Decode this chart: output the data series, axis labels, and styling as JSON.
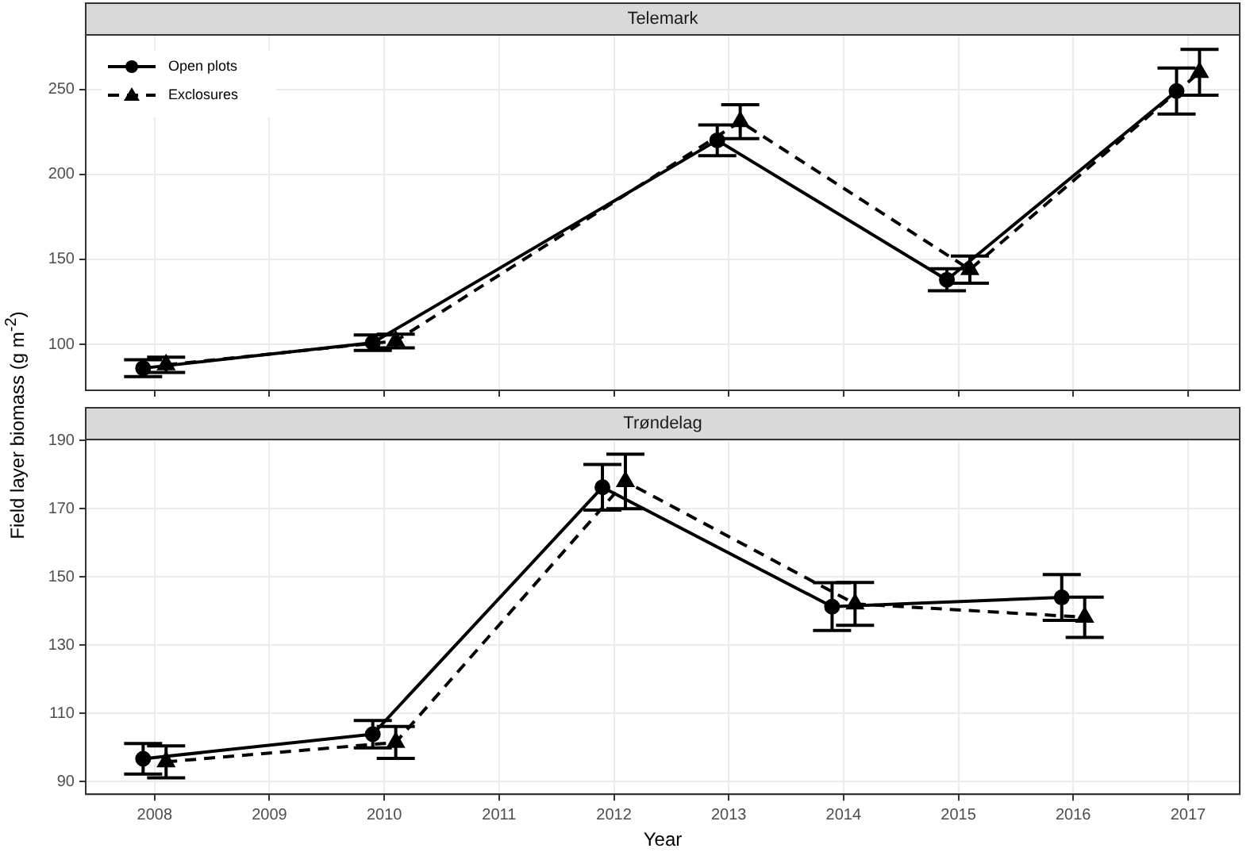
{
  "chart_data": [
    {
      "type": "line",
      "title": "Telemark",
      "ylabel": "Field layer biomass (g m$^{-2}$)",
      "xlim": [
        2007.4,
        2017.45
      ],
      "xticks": [
        2008,
        2009,
        2010,
        2011,
        2012,
        2013,
        2014,
        2015,
        2016,
        2017
      ],
      "ylim": [
        73,
        282
      ],
      "yticks": [
        100,
        150,
        200,
        250
      ],
      "grid": true,
      "legend": "top left",
      "tick_labels": "y",
      "series": [
        {
          "name": "Open plots",
          "color": "#000000",
          "marker": "circle",
          "line_style": "solid",
          "x": [
            2007.9,
            2009.9,
            2012.9,
            2014.9,
            2016.9
          ],
          "values": [
            86,
            101,
            220,
            138,
            249
          ],
          "errors": [
            5,
            4.5,
            9,
            6.5,
            13.5
          ]
        },
        {
          "name": "Exclosures",
          "color": "#000000",
          "marker": "triangle",
          "line_style": "dashed",
          "x": [
            2008.1,
            2010.1,
            2013.1,
            2015.1,
            2017.1
          ],
          "values": [
            88,
            102,
            231,
            144,
            260
          ],
          "errors": [
            4.5,
            4,
            10,
            8,
            13.5
          ]
        }
      ]
    },
    {
      "type": "line",
      "title": "Trøndelag",
      "xlabel": "Year",
      "xlim": [
        2007.4,
        2017.45
      ],
      "xticks": [
        2008,
        2009,
        2010,
        2011,
        2012,
        2013,
        2014,
        2015,
        2016,
        2017
      ],
      "ylim": [
        86.3,
        190.3
      ],
      "yticks": [
        90,
        110,
        130,
        150,
        170,
        190
      ],
      "grid": true,
      "series": [
        {
          "color": "#000000",
          "marker": "circle",
          "line_style": "solid",
          "x": [
            2007.9,
            2009.9,
            2011.9,
            2013.9,
            2015.9
          ],
          "values": [
            96.7,
            103.9,
            176.3,
            141.3,
            144
          ],
          "errors": [
            4.5,
            4,
            6.7,
            7,
            6.7
          ]
        },
        {
          "color": "#000000",
          "marker": "triangle",
          "line_style": "dashed",
          "x": [
            2008.1,
            2010.1,
            2012.1,
            2014.1,
            2016.1
          ],
          "values": [
            95.8,
            101.5,
            178,
            142.1,
            138.2
          ],
          "errors": [
            4.7,
            4.7,
            8,
            6.3,
            5.9
          ]
        }
      ]
    }
  ]
}
